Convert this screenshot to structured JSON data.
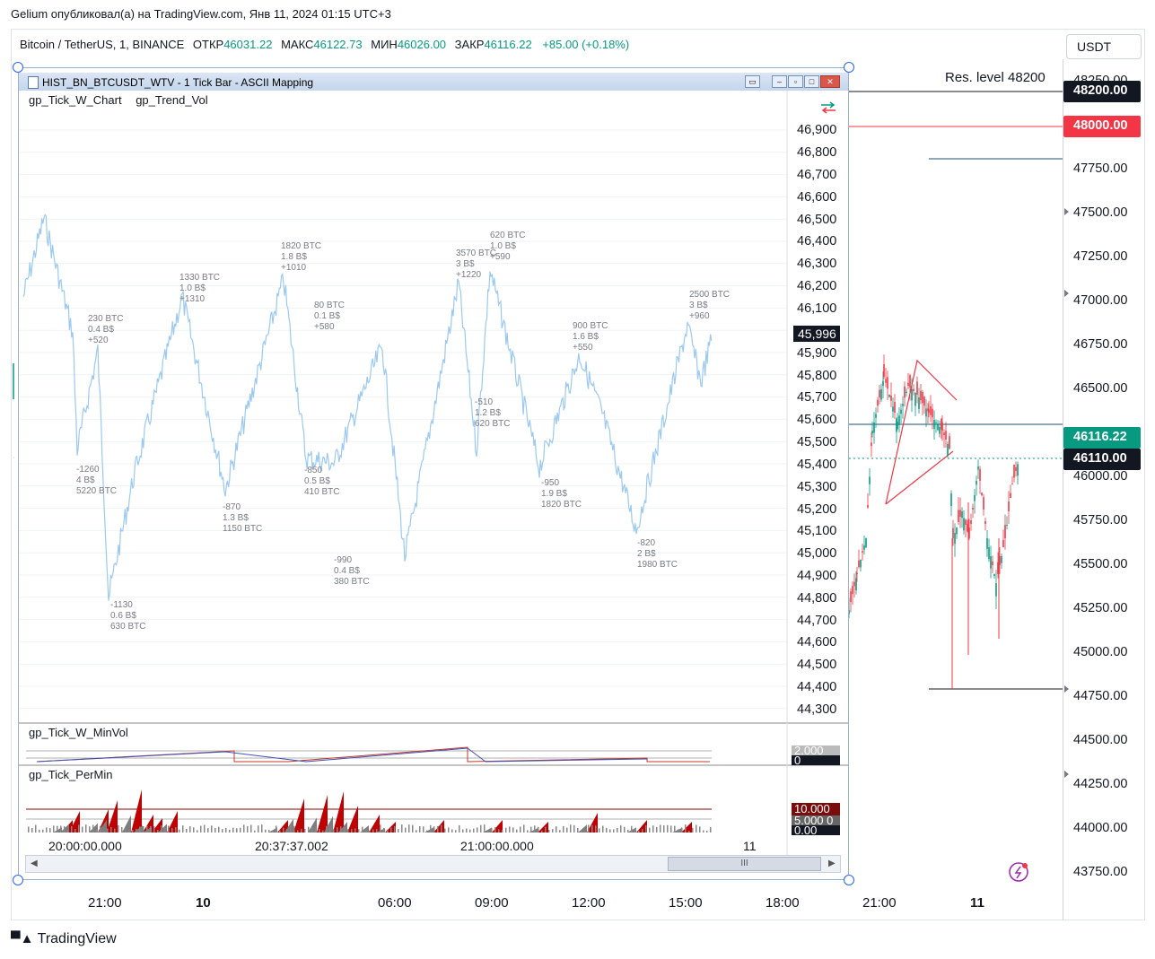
{
  "publication": "Gelium опубликовал(а) на TradingView.com, Янв 11, 2024 01:15 UTC+3",
  "header": {
    "symbol": "Bitcoin / TetherUS, 1, BINANCE",
    "open_label": "ОТКР",
    "open": "46031.22",
    "high_label": "МАКС",
    "high": "46122.73",
    "low_label": "МИН",
    "low": "46026.00",
    "close_label": "ЗАКР",
    "close": "46116.22",
    "change": "+85.00 (+0.18%)"
  },
  "currency": "USDT",
  "price_axis": [
    "48250.00",
    "47750.00",
    "47500.00",
    "47250.00",
    "47000.00",
    "46750.00",
    "46500.00",
    "46000.00",
    "45750.00",
    "45500.00",
    "45250.00",
    "45000.00",
    "44750.00",
    "44500.00",
    "44250.00",
    "44000.00",
    "43750.00"
  ],
  "price_tags": {
    "res": "48200.00",
    "red": "48000.00",
    "green": "46116.22",
    "dark": "46110.00",
    "res_label": "Res. level 48200"
  },
  "time_axis": [
    "21:00",
    "10",
    "06:00",
    "09:00",
    "12:00",
    "15:00",
    "18:00",
    "21:00",
    "11"
  ],
  "footer": "TradingView",
  "window": {
    "title": "HIST_BN_BTCUSDT_WTV - 1 Tick Bar - ASCII Mapping",
    "indicators_main": [
      "gp_Tick_W_Chart",
      "gp_Trend_Vol"
    ],
    "pane2": "gp_Tick_W_MinVol",
    "pane3": "gp_Tick_PerMin",
    "price_axis": [
      "46,900",
      "46,800",
      "46,700",
      "46,600",
      "46,500",
      "46,400",
      "46,300",
      "46,200",
      "46,100",
      "45,900",
      "45,800",
      "45,700",
      "45,600",
      "45,500",
      "45,400",
      "45,300",
      "45,200",
      "45,100",
      "45,000",
      "44,900",
      "44,800",
      "44,700",
      "44,600",
      "44,500",
      "44,400",
      "44,300"
    ],
    "last_price": "45,996",
    "pane3_labels": [
      "10.000",
      "5.000 0",
      "0.00"
    ],
    "pane2_labels": [
      "2.000",
      "0"
    ],
    "time_axis": [
      "20:00:00.000",
      "20:37:37.002",
      "21:00:00.000",
      "11"
    ],
    "annotations": [
      "230 BTC\n0.4 B$\n+520",
      "1330 BTC\n1.0 B$\n+1310",
      "1820 BTC\n1.8 B$\n+1010",
      "80 BTC\n0.1 B$\n+580",
      "3570 BTC\n3 B$\n+1220",
      "620 BTC\n1.0 B$\n+590",
      "900 BTC\n1.6 B$\n+550",
      "2500 BTC\n3 B$\n+960",
      "-1260\n4 B$\n5220 BTC",
      "-1130\n0.6 B$\n630 BTC",
      "-870\n1.3 B$\n1150 BTC",
      "-850\n0.5 B$\n410 BTC",
      "-990\n0.4 B$\n380 BTC",
      "-510\n1.2 B$\n620 BTC",
      "-950\n1.9 B$\n1820 BTC",
      "-820\n2 B$\n1980 BTC"
    ]
  }
}
